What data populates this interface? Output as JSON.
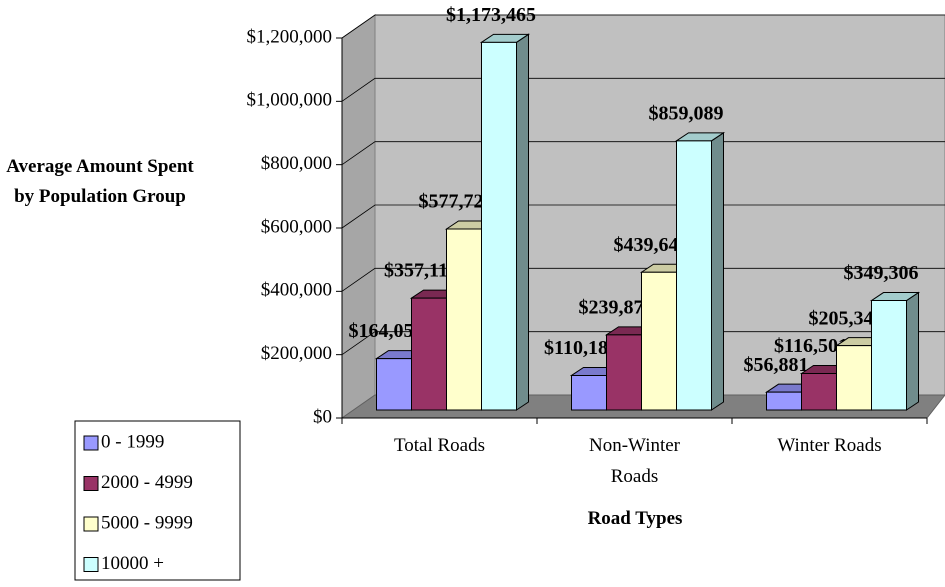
{
  "chart_data": {
    "type": "bar3d",
    "y_axis_label": "Average Amount Spent by Population Group",
    "x_axis_label": "Road Types",
    "categories": [
      "Total Roads",
      "Non-Winter Roads",
      "Winter Roads"
    ],
    "series": [
      {
        "name": "0 - 1999",
        "color": "#9999ff",
        "values": [
          164055,
          110187,
          56881
        ],
        "value_labels": [
          "$164,055",
          "$110,187",
          "$56,881"
        ]
      },
      {
        "name": "2000 - 4999",
        "color": "#993366",
        "values": [
          357119,
          239875,
          116501
        ],
        "value_labels": [
          "$357,119",
          "$239,875",
          "$116,501"
        ]
      },
      {
        "name": "5000 - 9999",
        "color": "#ffffcc",
        "values": [
          577722,
          439644,
          205341
        ],
        "value_labels": [
          "$577,722",
          "$439,644",
          "$205,341"
        ]
      },
      {
        "name": "10000 +",
        "color": "#ccffff",
        "values": [
          1173465,
          859089,
          349306
        ],
        "value_labels": [
          "$1,173,465",
          "$859,089",
          "$349,306"
        ]
      }
    ],
    "ylim": [
      0,
      1200000
    ],
    "yticks": [
      {
        "value": 0,
        "label": "$0"
      },
      {
        "value": 200000,
        "label": "$200,000"
      },
      {
        "value": 400000,
        "label": "$400,000"
      },
      {
        "value": 600000,
        "label": "$600,000"
      },
      {
        "value": 800000,
        "label": "$800,000"
      },
      {
        "value": 1000000,
        "label": "$1,000,000"
      },
      {
        "value": 1200000,
        "label": "$1,200,000"
      }
    ],
    "grid": true,
    "legend": "bottom-left"
  }
}
